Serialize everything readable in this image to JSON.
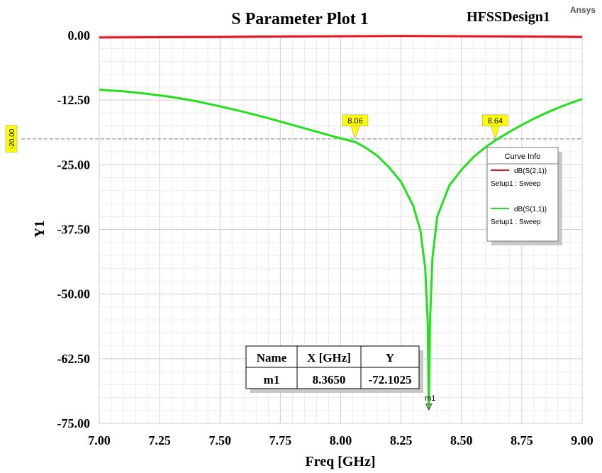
{
  "header": {
    "title": "S Parameter Plot 1",
    "design": "HFSSDesign1",
    "brand": "Ansys"
  },
  "chart_data": {
    "type": "line",
    "xlabel": "Freq [GHz]",
    "ylabel": "Y1",
    "xlim": [
      7.0,
      9.0
    ],
    "ylim": [
      -75.0,
      0.0
    ],
    "x_ticks": [
      "7.00",
      "7.25",
      "7.50",
      "7.75",
      "8.00",
      "8.25",
      "8.50",
      "8.75",
      "9.00"
    ],
    "y_ticks": [
      "0.00",
      "-12.50",
      "-25.00",
      "-37.50",
      "-50.00",
      "-62.50",
      "-75.00"
    ],
    "grid": true,
    "reference_line": {
      "y": -20.0,
      "label": "-20.00",
      "color": "#808080"
    },
    "crossings": [
      {
        "x": 8.06,
        "label": "8.06"
      },
      {
        "x": 8.64,
        "label": "8.64"
      }
    ],
    "legend": {
      "title": "Curve Info",
      "placement": "right",
      "entries": [
        {
          "name": "dB(S(2,1))",
          "setup": "Setup1 : Sweep",
          "color": "#e8141e"
        },
        {
          "name": "dB(S(1,1))",
          "setup": "Setup1 : Sweep",
          "color": "#22e01a"
        }
      ]
    },
    "series": [
      {
        "name": "dB(S(2,1))",
        "color": "#e8141e",
        "x": [
          7.0,
          7.25,
          7.5,
          7.75,
          8.0,
          8.25,
          8.5,
          8.75,
          9.0
        ],
        "y": [
          -0.4,
          -0.35,
          -0.3,
          -0.2,
          -0.15,
          -0.1,
          -0.15,
          -0.2,
          -0.3
        ]
      },
      {
        "name": "dB(S(1,1))",
        "color": "#22e01a",
        "x": [
          7.0,
          7.1,
          7.2,
          7.3,
          7.4,
          7.5,
          7.6,
          7.7,
          7.8,
          7.9,
          8.0,
          8.06,
          8.1,
          8.15,
          8.2,
          8.25,
          8.3,
          8.33,
          8.35,
          8.36,
          8.365,
          8.37,
          8.38,
          8.4,
          8.45,
          8.5,
          8.55,
          8.6,
          8.64,
          8.7,
          8.75,
          8.8,
          8.85,
          8.9,
          8.95,
          9.0
        ],
        "y": [
          -10.5,
          -10.8,
          -11.3,
          -11.9,
          -12.7,
          -13.7,
          -14.8,
          -16.0,
          -17.3,
          -18.6,
          -19.9,
          -20.6,
          -21.6,
          -23.2,
          -25.5,
          -28.3,
          -32.9,
          -37.7,
          -45.0,
          -55.0,
          -72.1025,
          -55.0,
          -43.0,
          -35.0,
          -29.0,
          -26.0,
          -23.5,
          -21.6,
          -20.3,
          -18.6,
          -17.3,
          -16.1,
          -15.0,
          -14.0,
          -13.1,
          -12.3
        ]
      }
    ],
    "marker": {
      "name": "m1",
      "x": 8.365,
      "y": -72.1025,
      "table": {
        "headers": [
          "Name",
          "X [GHz]",
          "Y"
        ],
        "row": [
          "m1",
          "8.3650",
          "-72.1025"
        ]
      }
    }
  }
}
